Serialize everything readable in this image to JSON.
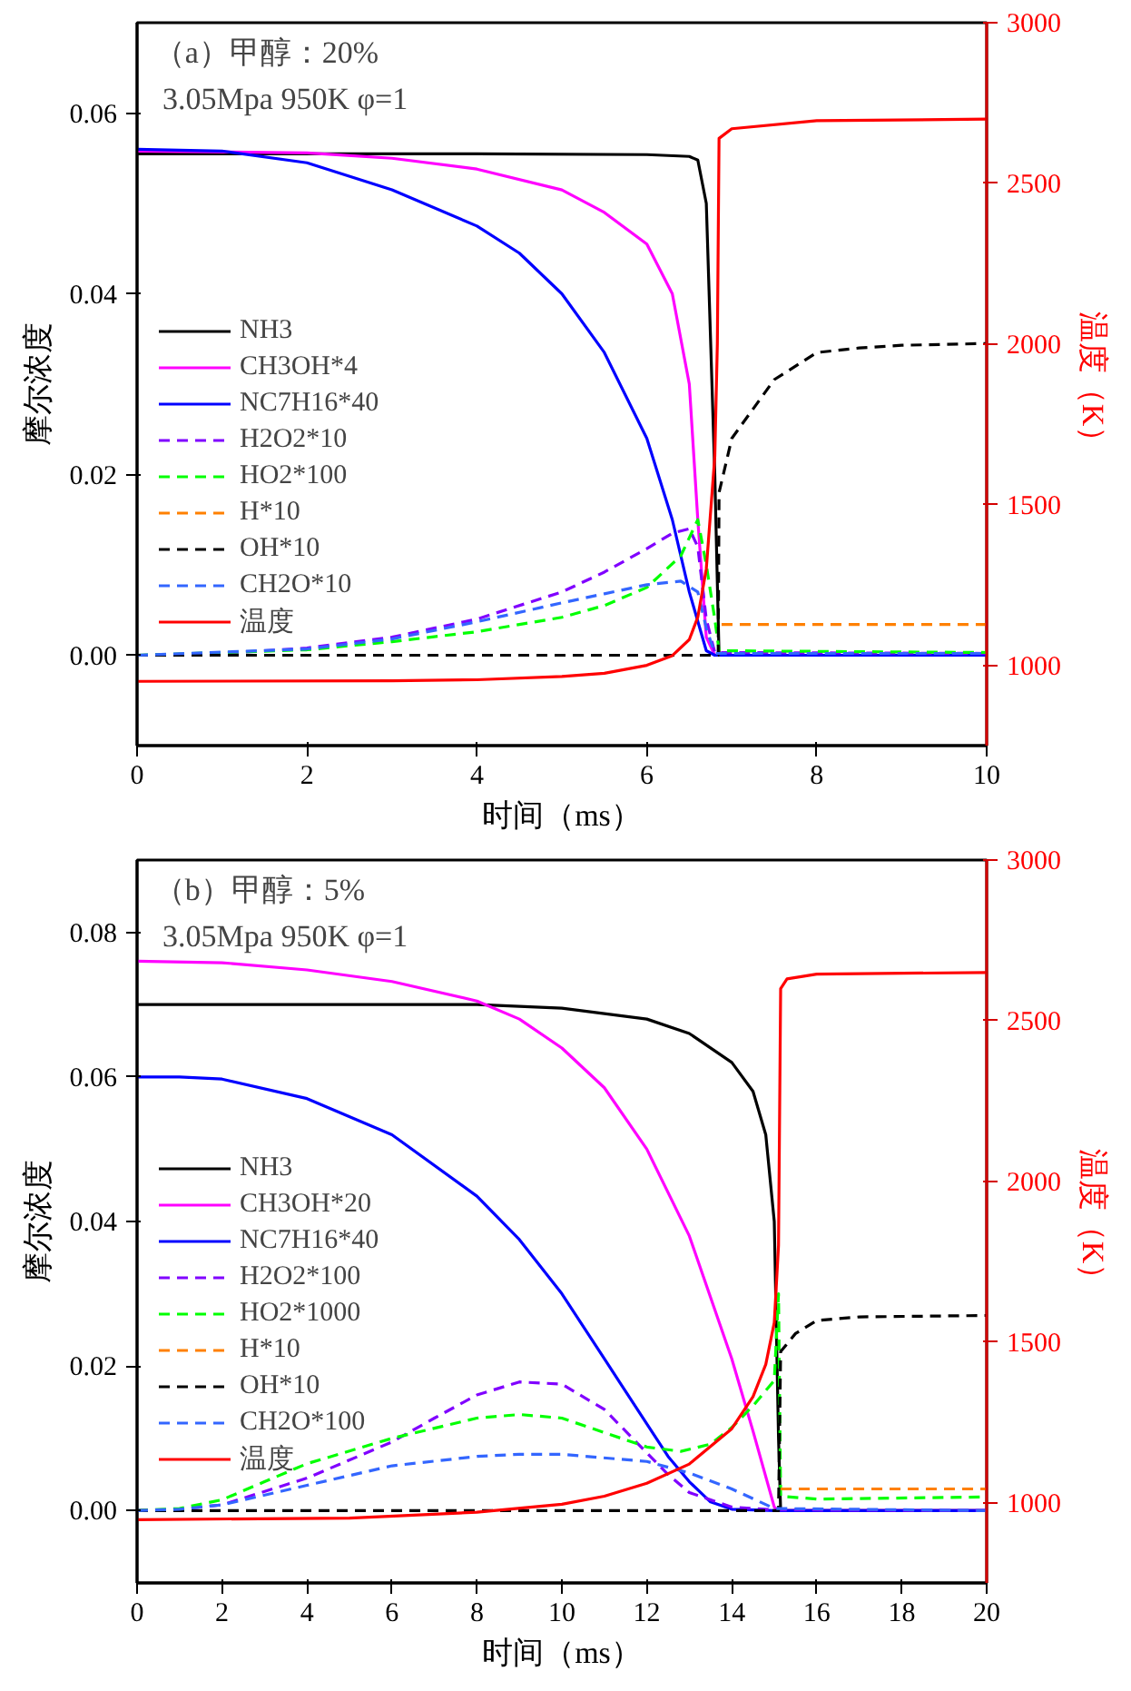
{
  "chart_data": [
    {
      "type": "line",
      "title": "（a）甲醇：20%",
      "subtitle": "3.05Mpa  950K  φ=1",
      "xlabel": "时间（ms）",
      "ylabel": "摩尔浓度",
      "y2label": "温度（K）",
      "xlim": [
        0,
        10
      ],
      "xticks": [
        0,
        2,
        4,
        6,
        8,
        10
      ],
      "ylim": [
        -0.01,
        0.07
      ],
      "yticks": [
        {
          "value": 0,
          "label": "0.00"
        },
        {
          "value": 0.02,
          "label": "0.02"
        },
        {
          "value": 0.04,
          "label": "0.04"
        },
        {
          "value": 0.06,
          "label": "0.06"
        }
      ],
      "y2lim": [
        750,
        3000
      ],
      "y2ticks": [
        1000,
        1500,
        2000,
        2500,
        3000
      ],
      "grid": false,
      "legend": "left",
      "marker": "none",
      "series": [
        {
          "name": "NH3",
          "color": "#000000",
          "line_style": "solid",
          "x": [
            0,
            2,
            4,
            6,
            6.5,
            6.6,
            6.7,
            6.8,
            6.85,
            10
          ],
          "values": [
            0.0555,
            0.0555,
            0.0555,
            0.0554,
            0.0552,
            0.0548,
            0.05,
            0.02,
            0,
            0
          ]
        },
        {
          "name": "CH3OH*4",
          "color": "#ff00ff",
          "line_style": "solid",
          "x": [
            0,
            2,
            3,
            4,
            5,
            5.5,
            6,
            6.3,
            6.5,
            6.6,
            6.7,
            6.8,
            10
          ],
          "values": [
            0.0558,
            0.0556,
            0.055,
            0.0538,
            0.0515,
            0.049,
            0.0455,
            0.04,
            0.03,
            0.015,
            0.002,
            0,
            0
          ]
        },
        {
          "name": "NC7H16*40",
          "color": "#0000ff",
          "line_style": "solid",
          "x": [
            0,
            1,
            2,
            3,
            4,
            4.5,
            5,
            5.5,
            6,
            6.3,
            6.5,
            6.7,
            6.8,
            10
          ],
          "values": [
            0.056,
            0.0558,
            0.0545,
            0.0515,
            0.0475,
            0.0445,
            0.04,
            0.0335,
            0.024,
            0.015,
            0.007,
            0.0005,
            0,
            0
          ]
        },
        {
          "name": "H2O2*10",
          "color": "#8000ff",
          "line_style": "dashed",
          "x": [
            0,
            1,
            2,
            3,
            4,
            5,
            5.5,
            6,
            6.3,
            6.5,
            6.6,
            6.7,
            6.8,
            10
          ],
          "values": [
            0,
            0.0002,
            0.0008,
            0.002,
            0.004,
            0.007,
            0.0092,
            0.0118,
            0.0135,
            0.014,
            0.012,
            0.004,
            0.0003,
            0.0002
          ]
        },
        {
          "name": "HO2*100",
          "color": "#00ff00",
          "line_style": "dashed",
          "x": [
            0,
            2,
            3,
            4,
            5,
            5.5,
            6,
            6.4,
            6.6,
            6.7,
            6.8,
            6.85,
            10
          ],
          "values": [
            0,
            0.0006,
            0.0015,
            0.0026,
            0.0042,
            0.0055,
            0.0075,
            0.011,
            0.015,
            0.01,
            0.004,
            0.0005,
            0.0003
          ]
        },
        {
          "name": "H*10",
          "color": "#ff8000",
          "line_style": "dashed",
          "x": [
            6.88,
            10
          ],
          "values": [
            0.0034,
            0.0034
          ]
        },
        {
          "name": "OH*10",
          "color": "#000000",
          "line_style": "dashed",
          "x": [
            0,
            6.84,
            6.85,
            7,
            7.5,
            8,
            8.5,
            9,
            10
          ],
          "values": [
            0,
            0,
            0.018,
            0.024,
            0.0305,
            0.0335,
            0.034,
            0.0343,
            0.0345
          ]
        },
        {
          "name": "CH2O*10",
          "color": "#3366ff",
          "line_style": "dashed",
          "x": [
            0,
            2,
            3,
            4,
            5,
            5.5,
            6,
            6.4,
            6.6,
            6.7,
            6.8,
            10
          ],
          "values": [
            0,
            0.0007,
            0.0018,
            0.0037,
            0.0058,
            0.0068,
            0.0078,
            0.0082,
            0.007,
            0.003,
            0.0002,
            0.0002
          ]
        },
        {
          "name": "温度",
          "color": "#ff0000",
          "line_style": "solid",
          "axis": "y2",
          "x": [
            0,
            3,
            4,
            5,
            5.5,
            6,
            6.3,
            6.5,
            6.6,
            6.7,
            6.8,
            6.83,
            6.85,
            7,
            8,
            10
          ],
          "values": [
            950,
            952,
            955,
            965,
            975,
            1000,
            1030,
            1080,
            1150,
            1300,
            1650,
            2000,
            2640,
            2670,
            2695,
            2700
          ]
        }
      ]
    },
    {
      "type": "line",
      "title": "（b）甲醇：5%",
      "subtitle": "3.05Mpa  950K  φ=1",
      "xlabel": "时间（ms）",
      "ylabel": "摩尔浓度",
      "y2label": "温度（K）",
      "xlim": [
        0,
        20
      ],
      "xticks": [
        0,
        2,
        4,
        6,
        8,
        10,
        12,
        14,
        16,
        18,
        20
      ],
      "ylim": [
        -0.01,
        0.09
      ],
      "yticks": [
        {
          "value": 0,
          "label": "0.00"
        },
        {
          "value": 0.02,
          "label": "0.02"
        },
        {
          "value": 0.04,
          "label": "0.04"
        },
        {
          "value": 0.06,
          "label": "0.06"
        },
        {
          "value": 0.08,
          "label": "0.08"
        }
      ],
      "y2lim": [
        750,
        3000
      ],
      "y2ticks": [
        1000,
        1500,
        2000,
        2500,
        3000
      ],
      "grid": false,
      "legend": "left",
      "marker": "none",
      "series": [
        {
          "name": "NH3",
          "color": "#000000",
          "line_style": "solid",
          "x": [
            0,
            8,
            10,
            12,
            13,
            14,
            14.5,
            14.8,
            15,
            15.1,
            15.15,
            20
          ],
          "values": [
            0.07,
            0.07,
            0.0695,
            0.068,
            0.066,
            0.062,
            0.058,
            0.052,
            0.04,
            0.01,
            0,
            0
          ]
        },
        {
          "name": "CH3OH*20",
          "color": "#ff00ff",
          "line_style": "solid",
          "x": [
            0,
            2,
            4,
            6,
            8,
            9,
            10,
            11,
            12,
            13,
            14,
            14.5,
            15,
            15.1,
            20
          ],
          "values": [
            0.076,
            0.0758,
            0.0748,
            0.0732,
            0.0705,
            0.068,
            0.064,
            0.0585,
            0.05,
            0.038,
            0.021,
            0.011,
            0.0005,
            0,
            0
          ]
        },
        {
          "name": "NC7H16*40",
          "color": "#0000ff",
          "line_style": "solid",
          "x": [
            0,
            1,
            2,
            4,
            6,
            8,
            9,
            10,
            11,
            12,
            12.5,
            13,
            13.5,
            14,
            15,
            20
          ],
          "values": [
            0.06,
            0.06,
            0.0597,
            0.057,
            0.052,
            0.0435,
            0.0375,
            0.03,
            0.021,
            0.012,
            0.0075,
            0.004,
            0.0012,
            0.0002,
            0,
            0
          ]
        },
        {
          "name": "H2O2*100",
          "color": "#8000ff",
          "line_style": "dashed",
          "x": [
            0,
            1,
            2,
            4,
            6,
            7,
            8,
            9,
            10,
            11,
            12,
            12.5,
            13,
            14,
            15,
            20
          ],
          "values": [
            0,
            0.0002,
            0.0008,
            0.0045,
            0.0095,
            0.0128,
            0.016,
            0.0178,
            0.0175,
            0.014,
            0.008,
            0.005,
            0.0025,
            0.0005,
            0.0001,
            0
          ]
        },
        {
          "name": "HO2*1000",
          "color": "#00ff00",
          "line_style": "dashed",
          "x": [
            0,
            1,
            2,
            3,
            4,
            6,
            8,
            9,
            10,
            11,
            12,
            12.8,
            13.5,
            14,
            14.5,
            15,
            15.1,
            15.15,
            16,
            20
          ],
          "values": [
            0,
            0.0003,
            0.0015,
            0.004,
            0.0065,
            0.01,
            0.0128,
            0.0133,
            0.0128,
            0.0108,
            0.0088,
            0.0082,
            0.0092,
            0.0115,
            0.0145,
            0.018,
            0.03,
            0.002,
            0.0016,
            0.0019
          ]
        },
        {
          "name": "H*10",
          "color": "#ff8000",
          "line_style": "dashed",
          "x": [
            15.15,
            20
          ],
          "values": [
            0.003,
            0.003
          ]
        },
        {
          "name": "OH*10",
          "color": "#000000",
          "line_style": "dashed",
          "x": [
            0,
            15.1,
            15.15,
            15.5,
            16,
            17,
            20
          ],
          "values": [
            0,
            0,
            0.022,
            0.0245,
            0.0263,
            0.0268,
            0.027
          ]
        },
        {
          "name": "CH2O*100",
          "color": "#3366ff",
          "line_style": "dashed",
          "x": [
            0,
            1,
            2,
            4,
            6,
            8,
            9,
            10,
            12,
            13,
            14,
            15,
            20
          ],
          "values": [
            0,
            0.0002,
            0.0008,
            0.0035,
            0.0062,
            0.0075,
            0.0078,
            0.0078,
            0.0068,
            0.0052,
            0.003,
            0.0003,
            0
          ]
        },
        {
          "name": "温度",
          "color": "#ff0000",
          "line_style": "solid",
          "axis": "y2",
          "x": [
            0,
            5,
            8,
            10,
            11,
            12,
            13,
            14,
            14.5,
            14.8,
            15,
            15.1,
            15.15,
            15.3,
            16,
            20
          ],
          "values": [
            947,
            952,
            970,
            995,
            1020,
            1060,
            1120,
            1230,
            1330,
            1430,
            1560,
            1800,
            2600,
            2630,
            2645,
            2650
          ]
        }
      ]
    }
  ]
}
